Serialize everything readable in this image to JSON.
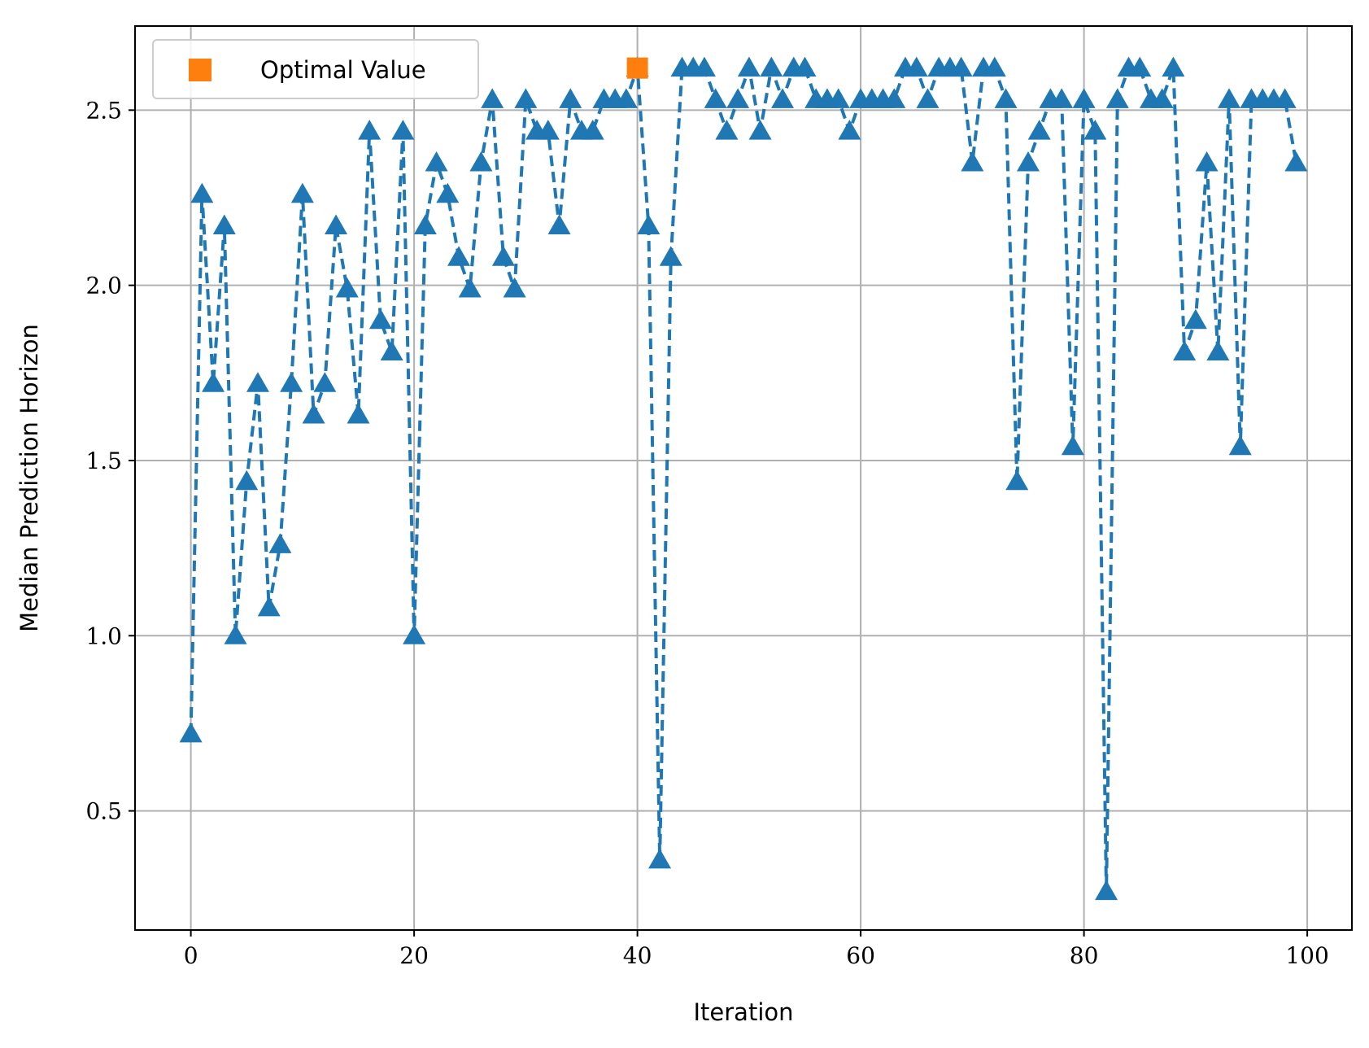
{
  "chart_data": {
    "type": "line",
    "xlabel": "Iteration",
    "ylabel": "Median Prediction Horizon",
    "xlim": [
      -5,
      104
    ],
    "ylim": [
      0.16,
      2.74
    ],
    "x_ticks": [
      0,
      20,
      40,
      60,
      80,
      100
    ],
    "x_tick_labels": [
      "0",
      "20",
      "40",
      "60",
      "80",
      "100"
    ],
    "y_ticks": [
      0.5,
      1.0,
      1.5,
      2.0,
      2.5
    ],
    "y_tick_labels": [
      "0.5",
      "1.0",
      "1.5",
      "2.0",
      "2.5"
    ],
    "grid": true,
    "legend_placement": "upper-left",
    "series": [
      {
        "color": "#1f77b4",
        "line_style": "dashed",
        "marker": "triangle",
        "x": [
          0,
          1,
          2,
          3,
          4,
          5,
          6,
          7,
          8,
          9,
          10,
          11,
          12,
          13,
          14,
          15,
          16,
          17,
          18,
          19,
          20,
          21,
          22,
          23,
          24,
          25,
          26,
          27,
          28,
          29,
          30,
          31,
          32,
          33,
          34,
          35,
          36,
          37,
          38,
          39,
          40,
          41,
          42,
          43,
          44,
          45,
          46,
          47,
          48,
          49,
          50,
          51,
          52,
          53,
          54,
          55,
          56,
          57,
          58,
          59,
          60,
          61,
          62,
          63,
          64,
          65,
          66,
          67,
          68,
          69,
          70,
          71,
          72,
          73,
          74,
          75,
          76,
          77,
          78,
          79,
          80,
          81,
          82,
          83,
          84,
          85,
          86,
          87,
          88,
          89,
          90,
          91,
          92,
          93,
          94,
          95,
          96,
          97,
          98,
          99
        ],
        "values": [
          0.72,
          2.26,
          1.72,
          2.17,
          1.0,
          1.44,
          1.72,
          1.08,
          1.26,
          1.72,
          2.26,
          1.63,
          1.72,
          2.17,
          1.99,
          1.63,
          2.44,
          1.9,
          1.81,
          2.44,
          1.0,
          2.17,
          2.35,
          2.26,
          2.08,
          1.99,
          2.35,
          2.53,
          2.08,
          1.99,
          2.53,
          2.44,
          2.44,
          2.17,
          2.53,
          2.44,
          2.44,
          2.53,
          2.53,
          2.53,
          2.62,
          2.17,
          0.36,
          2.08,
          2.62,
          2.62,
          2.62,
          2.53,
          2.44,
          2.53,
          2.62,
          2.44,
          2.62,
          2.53,
          2.62,
          2.62,
          2.53,
          2.53,
          2.53,
          2.44,
          2.53,
          2.53,
          2.53,
          2.53,
          2.62,
          2.62,
          2.53,
          2.62,
          2.62,
          2.62,
          2.35,
          2.62,
          2.62,
          2.53,
          1.44,
          2.35,
          2.44,
          2.53,
          2.53,
          1.54,
          2.53,
          2.44,
          0.27,
          2.53,
          2.62,
          2.62,
          2.53,
          2.53,
          2.62,
          1.81,
          1.9,
          2.35,
          1.81,
          2.53,
          1.54,
          2.53,
          2.53,
          2.53,
          2.53,
          2.35
        ]
      },
      {
        "name": "Optimal Value",
        "color": "#ff7f0e",
        "marker": "square",
        "x": [
          40
        ],
        "values": [
          2.62
        ]
      }
    ]
  }
}
